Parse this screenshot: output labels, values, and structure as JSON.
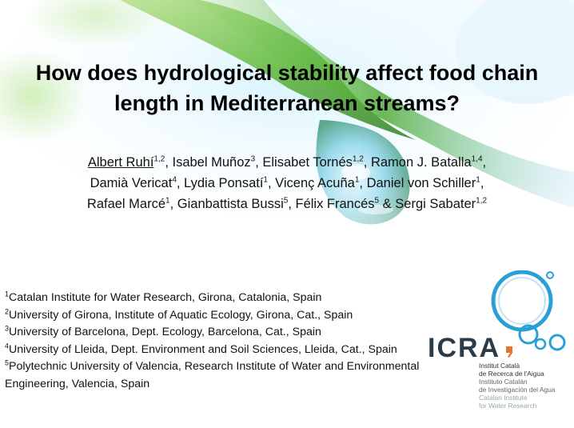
{
  "title_lines": [
    "How does hydrological stability affect food chain",
    "length in Mediterranean streams?"
  ],
  "authors": [
    {
      "name": "Albert Ruhí",
      "aff": "1,2",
      "sep": ", "
    },
    {
      "name": "Isabel Muñoz",
      "aff": "3",
      "sep": ", "
    },
    {
      "name": "Elisabet Tornés",
      "aff": "1,2",
      "sep": ", "
    },
    {
      "name": "Ramon J. Batalla",
      "aff": "1,4",
      "sep": ","
    },
    {
      "name": "Damià Vericat",
      "aff": "4",
      "sep": ", "
    },
    {
      "name": "Lydia Ponsatí",
      "aff": "1",
      "sep": ", "
    },
    {
      "name": "Vicenç Acuña",
      "aff": "1",
      "sep": ", "
    },
    {
      "name": "Daniel von Schiller",
      "aff": "1",
      "sep": ","
    },
    {
      "name": "Rafael Marcé",
      "aff": "1",
      "sep": ", "
    },
    {
      "name": "Gianbattista Bussi",
      "aff": "5",
      "sep": ", "
    },
    {
      "name": "Félix Francés",
      "aff": "5",
      "sep": " & "
    },
    {
      "name": "Sergi Sabater",
      "aff": "1,2",
      "sep": ""
    }
  ],
  "affiliations": [
    {
      "num": "1",
      "text": "Catalan Institute for Water Research, Girona, Catalonia, Spain"
    },
    {
      "num": "2",
      "text": "University of Girona, Institute of Aquatic Ecology, Girona, Cat., Spain"
    },
    {
      "num": "3",
      "text": "University of Barcelona, Dept. Ecology, Barcelona, Cat.,  Spain"
    },
    {
      "num": "4",
      "text": "University of Lleida, Dept. Environment and Soil Sciences, Lleida, Cat., Spain"
    },
    {
      "num": "5",
      "text": "Polytechnic University of Valencia, Research Institute of Water and Environmental Engineering, Valencia, Spain"
    }
  ],
  "logo": {
    "name": "ICRA",
    "lines": [
      "Institut Català",
      "de Recerca de l'Aigua",
      "Instituto Catalán",
      "de Investigación del Agua",
      "Catalan Institute",
      "for Water Research"
    ]
  },
  "colors": {
    "leaf_green": "#5fb83a",
    "water_blue": "#2a9fd6",
    "icra_orange": "#e8752a",
    "icra_dark": "#2a3c4a"
  }
}
